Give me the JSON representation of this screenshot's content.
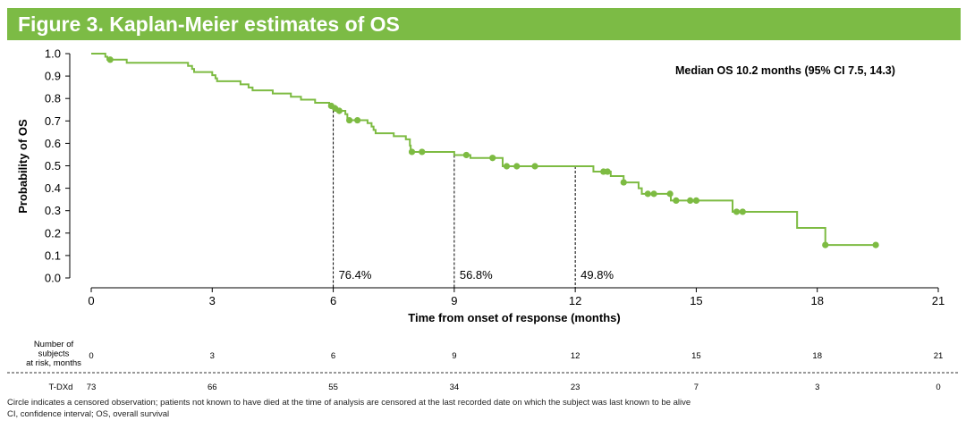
{
  "title": "Figure 3. Kaplan-Meier estimates of OS",
  "chart_data": {
    "type": "line",
    "subtype": "kaplan-meier step",
    "xlabel": "Time from onset of response (months)",
    "ylabel": "Probability of OS",
    "xlim": [
      0,
      21
    ],
    "ylim": [
      0,
      1.0
    ],
    "xticks": [
      "0",
      "3",
      "6",
      "9",
      "12",
      "15",
      "18",
      "21"
    ],
    "yticks": [
      "0.0",
      "0.1",
      "0.2",
      "0.3",
      "0.4",
      "0.5",
      "0.6",
      "0.7",
      "0.8",
      "0.9",
      "1.0"
    ],
    "grid": false,
    "color": "#7dbb42",
    "annotation": "Median OS 10.2 months (95% CI 7.5, 14.3)",
    "landmarks": [
      {
        "x": 6,
        "label": "76.4%"
      },
      {
        "x": 9,
        "label": "56.8%"
      },
      {
        "x": 12,
        "label": "49.8%"
      }
    ],
    "steps": [
      [
        0,
        1.0
      ],
      [
        0.35,
        0.986
      ],
      [
        0.4,
        0.973
      ],
      [
        0.88,
        0.959
      ],
      [
        2.4,
        0.945
      ],
      [
        2.5,
        0.932
      ],
      [
        2.55,
        0.918
      ],
      [
        3.0,
        0.904
      ],
      [
        3.08,
        0.89
      ],
      [
        3.12,
        0.877
      ],
      [
        3.7,
        0.863
      ],
      [
        3.9,
        0.849
      ],
      [
        4.0,
        0.836
      ],
      [
        4.5,
        0.822
      ],
      [
        4.95,
        0.808
      ],
      [
        5.2,
        0.795
      ],
      [
        5.55,
        0.781
      ],
      [
        5.9,
        0.767
      ],
      [
        6.05,
        0.755
      ],
      [
        6.15,
        0.745
      ],
      [
        6.3,
        0.73
      ],
      [
        6.35,
        0.703
      ],
      [
        6.85,
        0.69
      ],
      [
        6.95,
        0.675
      ],
      [
        7.0,
        0.66
      ],
      [
        7.05,
        0.645
      ],
      [
        7.5,
        0.632
      ],
      [
        7.8,
        0.618
      ],
      [
        7.9,
        0.59
      ],
      [
        7.92,
        0.562
      ],
      [
        9.0,
        0.548
      ],
      [
        9.4,
        0.535
      ],
      [
        10.2,
        0.498
      ],
      [
        12.45,
        0.474
      ],
      [
        12.88,
        0.454
      ],
      [
        13.2,
        0.426
      ],
      [
        13.57,
        0.4
      ],
      [
        13.65,
        0.375
      ],
      [
        14.37,
        0.345
      ],
      [
        15.9,
        0.295
      ],
      [
        17.5,
        0.223
      ],
      [
        18.2,
        0.147
      ],
      [
        19.45,
        0.147
      ]
    ],
    "censored": [
      [
        0.47,
        0.973
      ],
      [
        5.95,
        0.767
      ],
      [
        6.05,
        0.755
      ],
      [
        6.15,
        0.745
      ],
      [
        6.4,
        0.703
      ],
      [
        6.6,
        0.703
      ],
      [
        7.95,
        0.562
      ],
      [
        8.2,
        0.562
      ],
      [
        9.3,
        0.548
      ],
      [
        9.95,
        0.535
      ],
      [
        10.3,
        0.498
      ],
      [
        10.55,
        0.498
      ],
      [
        11.0,
        0.498
      ],
      [
        12.7,
        0.474
      ],
      [
        12.8,
        0.474
      ],
      [
        13.2,
        0.426
      ],
      [
        13.8,
        0.375
      ],
      [
        13.95,
        0.375
      ],
      [
        14.35,
        0.375
      ],
      [
        14.5,
        0.345
      ],
      [
        14.85,
        0.345
      ],
      [
        15.0,
        0.345
      ],
      [
        16.0,
        0.295
      ],
      [
        16.15,
        0.295
      ],
      [
        18.2,
        0.147
      ],
      [
        19.45,
        0.147
      ]
    ]
  },
  "risk_table": {
    "header_label": [
      "Number of",
      "subjects",
      "at risk, months"
    ],
    "months": [
      "0",
      "3",
      "6",
      "9",
      "12",
      "15",
      "18",
      "21"
    ],
    "arm": "T-DXd",
    "counts": [
      "73",
      "66",
      "55",
      "34",
      "23",
      "7",
      "3",
      "0"
    ]
  },
  "footnotes": [
    "Circle indicates a censored observation; patients not known to have died at the time of analysis are censored at the last recorded date on which the subject was last known to be alive",
    "CI, confidence interval; OS, overall survival"
  ]
}
